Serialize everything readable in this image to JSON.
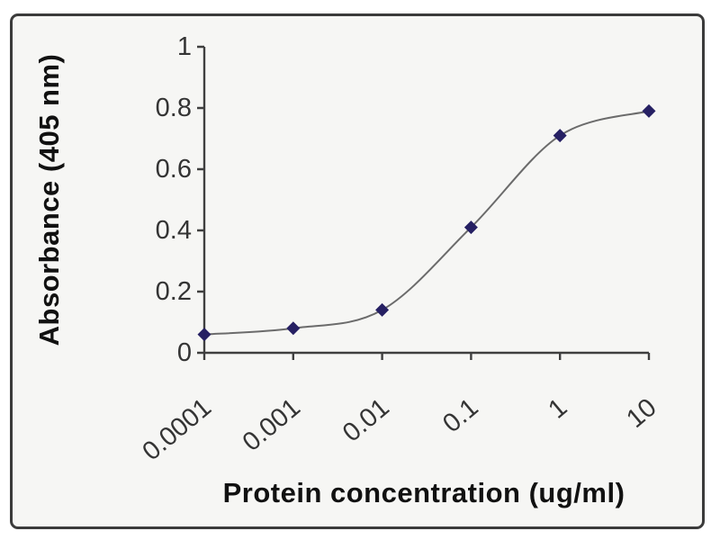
{
  "chart_data": {
    "type": "line",
    "title": "",
    "xlabel": "Protein concentration (ug/ml)",
    "ylabel": "Absorbance (405 nm)",
    "x_scale": "log",
    "x": [
      0.0001,
      0.001,
      0.01,
      0.1,
      1,
      10
    ],
    "x_tick_labels": [
      "0.0001",
      "0.001",
      "0.01",
      "0.1",
      "1",
      "10"
    ],
    "y_ticks": [
      0,
      0.2,
      0.4,
      0.6,
      0.8,
      1
    ],
    "y_tick_labels": [
      "0",
      "0.2",
      "0.4",
      "0.6",
      "0.8",
      "1"
    ],
    "ylim": [
      0,
      1
    ],
    "grid": false,
    "legend": "none",
    "marker": "diamond",
    "smooth": true,
    "series": [
      {
        "name": "Absorbance (405 nm)",
        "values": [
          0.06,
          0.08,
          0.14,
          0.41,
          0.71,
          0.79
        ]
      }
    ],
    "colors": {
      "marker": "#262063",
      "line": "#6b6b6b",
      "axis": "#3f3f3f",
      "frame_border": "#3b3b3b",
      "plot_background": "#f6f6f4",
      "text": "#343434"
    }
  }
}
